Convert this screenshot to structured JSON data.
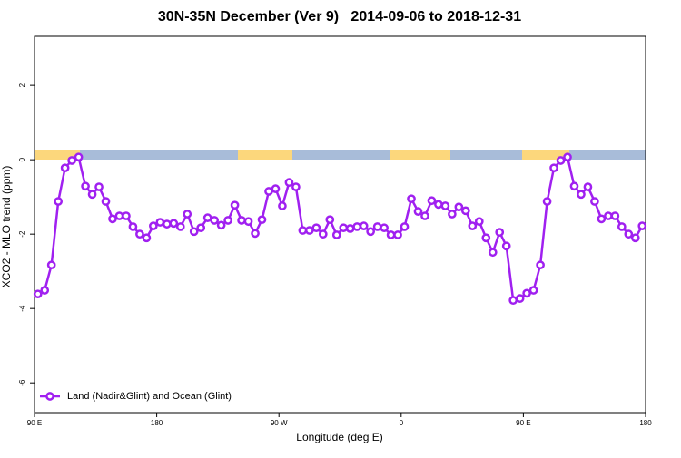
{
  "chart_data": {
    "type": "line",
    "title": "30N-35N December (Ver 9)   2014-09-06 to 2018-12-31",
    "x_label": "Longitude (deg E)",
    "y_label": "XCO2 - MLO trend (ppm)",
    "xlim": [
      90,
      540
    ],
    "xticks": [
      {
        "value": 90,
        "label": "90 E"
      },
      180,
      {
        "value": 270,
        "label": "90 W"
      },
      {
        "value": 360,
        "label": "0"
      },
      {
        "value": 450,
        "label": "90 E"
      },
      {
        "value": 540,
        "label": "180"
      }
    ],
    "ylim": [
      -6.8,
      3.32
    ],
    "yticks": [
      -6,
      -4,
      -2,
      0,
      2
    ],
    "legend": "bottomleft",
    "series": [
      {
        "name": "Land (Nadir&Glint) and Ocean (Glint)",
        "color": "#a020f0",
        "x": [
          92.5,
          97.5,
          102.5,
          107.5,
          112.5,
          117.5,
          122.5,
          127.5,
          132.5,
          137.5,
          142.5,
          147.5,
          152.5,
          157.5,
          162.5,
          167.5,
          172.5,
          177.5,
          182.5,
          187.5,
          192.5,
          197.5,
          202.5,
          207.5,
          212.5,
          217.5,
          222.5,
          227.5,
          232.5,
          237.5,
          242.5,
          247.5,
          252.5,
          257.5,
          262.5,
          267.5,
          272.5,
          277.5,
          282.5,
          287.5,
          292.5,
          297.5,
          302.5,
          307.5,
          312.5,
          317.5,
          322.5,
          327.5,
          332.5,
          337.5,
          342.5,
          347.5,
          352.5,
          357.5,
          362.5,
          367.5,
          372.5,
          377.5,
          382.5,
          387.5,
          392.5,
          397.5,
          402.5,
          407.5,
          412.5,
          417.5,
          422.5,
          427.5,
          432.5,
          437.5,
          442.5,
          447.5,
          452.5,
          457.5,
          462.5,
          467.5,
          472.5,
          477.5,
          482.5,
          487.5,
          492.5,
          497.5,
          502.5,
          507.5,
          512.5,
          517.5,
          522.5,
          527.5,
          532.5,
          537.5
        ],
        "values": [
          -3.61,
          -3.51,
          -2.83,
          -1.12,
          -0.22,
          -0.02,
          0.07,
          -0.71,
          -0.93,
          -0.73,
          -1.12,
          -1.59,
          -1.51,
          -1.51,
          -1.8,
          -2.0,
          -2.1,
          -1.78,
          -1.68,
          -1.73,
          -1.71,
          -1.8,
          -1.46,
          -1.93,
          -1.83,
          -1.56,
          -1.63,
          -1.76,
          -1.63,
          -1.22,
          -1.63,
          -1.66,
          -1.98,
          -1.61,
          -0.85,
          -0.78,
          -1.24,
          -0.61,
          -0.73,
          -1.9,
          -1.9,
          -1.83,
          -2.0,
          -1.61,
          -2.02,
          -1.83,
          -1.85,
          -1.8,
          -1.78,
          -1.93,
          -1.8,
          -1.83,
          -2.02,
          -2.02,
          -1.8,
          -1.05,
          -1.39,
          -1.51,
          -1.1,
          -1.2,
          -1.24,
          -1.46,
          -1.27,
          -1.37,
          -1.78,
          -1.66,
          -2.1,
          -2.49,
          -1.95,
          -2.32,
          -3.78,
          -3.73,
          -3.59,
          -3.51,
          -2.83,
          -1.12,
          -0.22,
          -0.02,
          0.07,
          -0.71,
          -0.93,
          -0.73,
          -1.12,
          -1.59,
          -1.51,
          -1.51,
          -1.8,
          -2.0,
          -2.1,
          -1.78
        ]
      }
    ]
  }
}
